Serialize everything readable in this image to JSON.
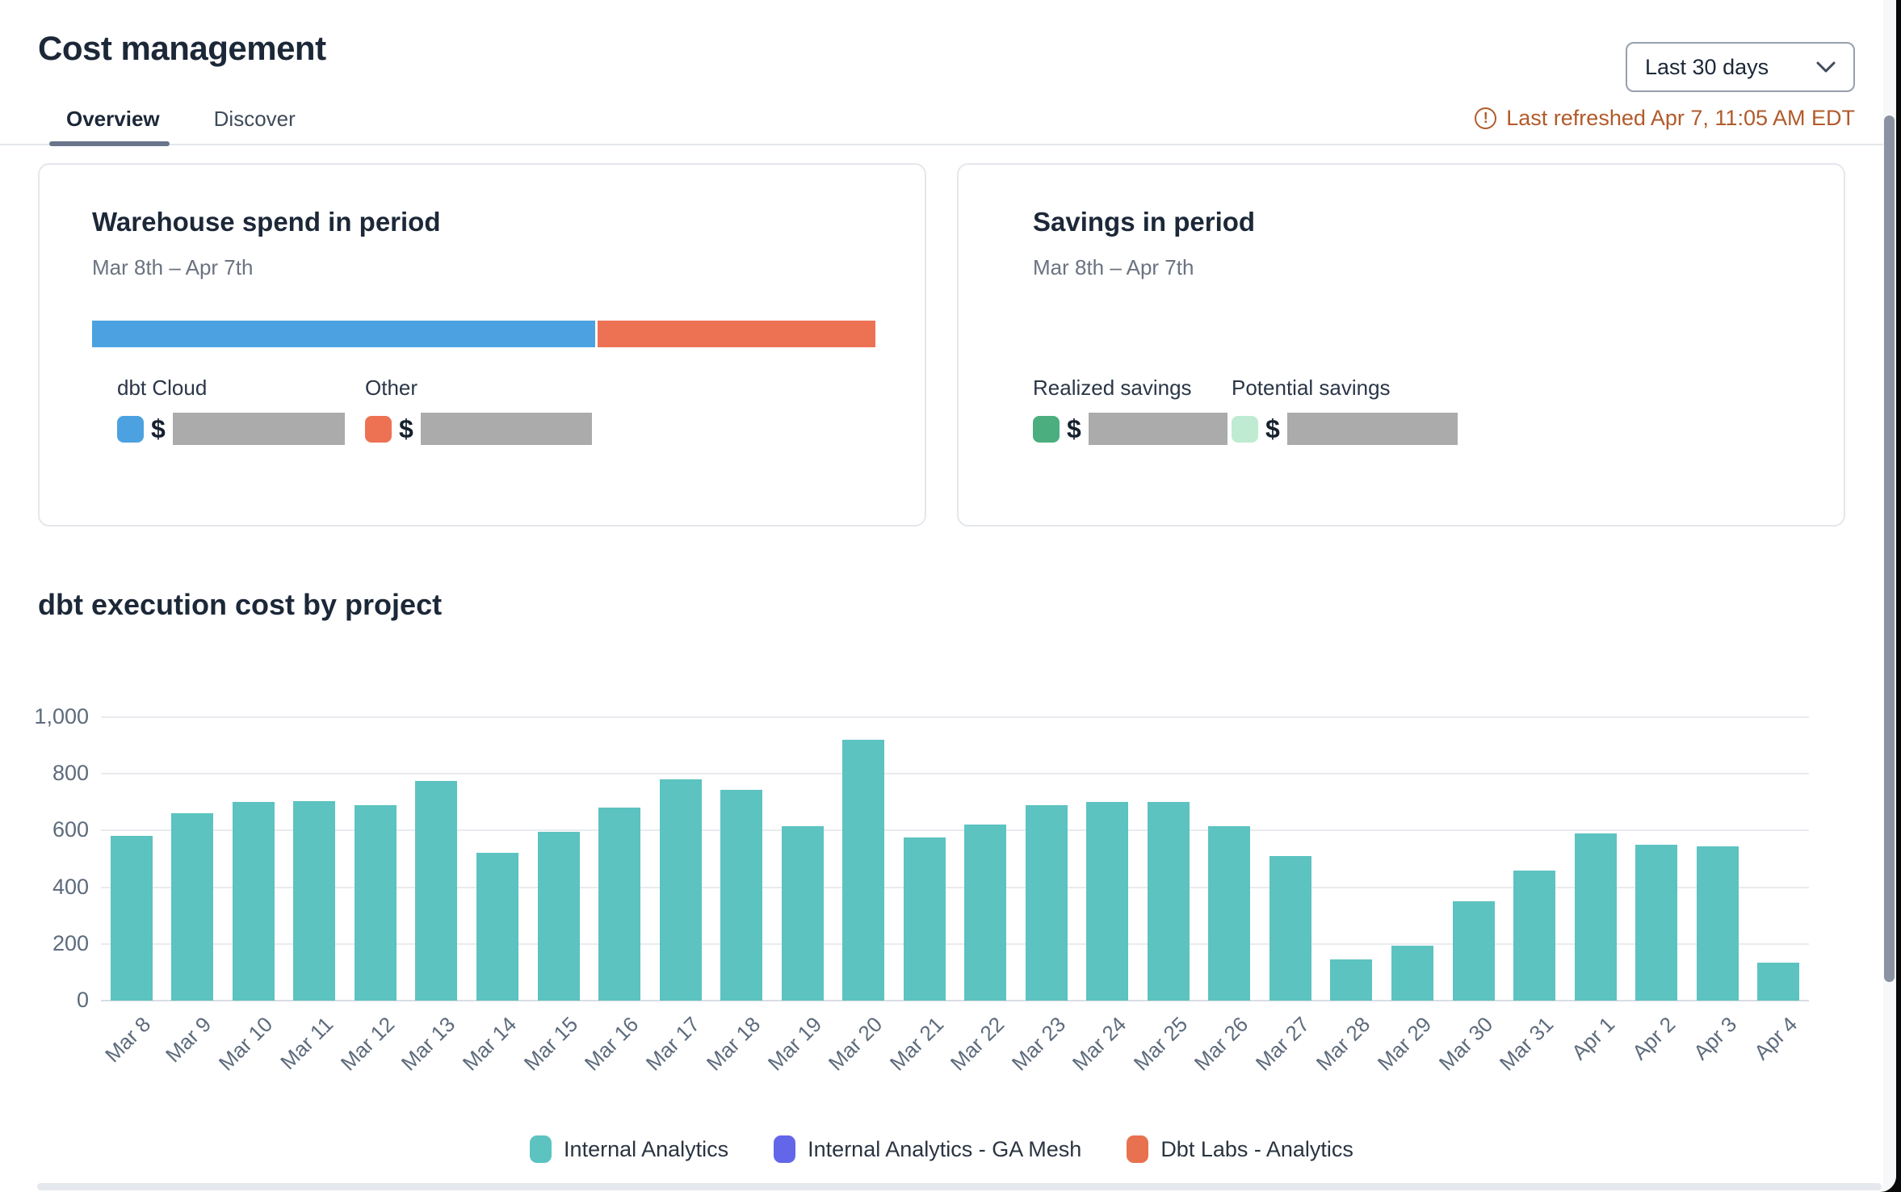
{
  "header": {
    "title": "Cost management",
    "tabs": [
      {
        "label": "Overview",
        "active": true
      },
      {
        "label": "Discover",
        "active": false
      }
    ],
    "period_selector": {
      "value": "Last 30 days"
    },
    "refresh_notice": "Last refreshed Apr 7, 11:05 AM EDT",
    "refresh_color": "#b15a2b"
  },
  "cards": {
    "warehouse_spend": {
      "title": "Warehouse spend in period",
      "date_range": "Mar 8th – Apr 7th",
      "currency_symbol": "$",
      "segments": [
        {
          "label": "dbt Cloud",
          "color": "#4ca2e0",
          "percent": 64.4,
          "value_redacted": true
        },
        {
          "label": "Other",
          "color": "#ed7253",
          "percent": 35.6,
          "value_redacted": true
        }
      ]
    },
    "savings": {
      "title": "Savings in period",
      "date_range": "Mar 8th – Apr 7th",
      "currency_symbol": "$",
      "items": [
        {
          "label": "Realized savings",
          "color": "#4bae7e",
          "value_redacted": true
        },
        {
          "label": "Potential savings",
          "color": "#bfebd3",
          "value_redacted": true
        }
      ]
    }
  },
  "chart_section": {
    "title": "dbt execution cost by project"
  },
  "chart_data": {
    "type": "bar",
    "title": "dbt execution cost by project",
    "xlabel": "",
    "ylabel": "",
    "ylim": [
      0,
      1000
    ],
    "yticks": [
      {
        "value": 0,
        "label": "0"
      },
      {
        "value": 200,
        "label": "200"
      },
      {
        "value": 400,
        "label": "400"
      },
      {
        "value": 600,
        "label": "600"
      },
      {
        "value": 800,
        "label": "800"
      },
      {
        "value": 1000,
        "label": "1,000"
      }
    ],
    "grid": true,
    "legend_position": "bottom",
    "categories": [
      "Mar 8",
      "Mar 9",
      "Mar 10",
      "Mar 11",
      "Mar 12",
      "Mar 13",
      "Mar 14",
      "Mar 15",
      "Mar 16",
      "Mar 17",
      "Mar 18",
      "Mar 19",
      "Mar 20",
      "Mar 21",
      "Mar 22",
      "Mar 23",
      "Mar 24",
      "Mar 25",
      "Mar 26",
      "Mar 27",
      "Mar 28",
      "Mar 29",
      "Mar 30",
      "Mar 31",
      "Apr 1",
      "Apr 2",
      "Apr 3",
      "Apr 4"
    ],
    "series": [
      {
        "name": "Internal Analytics",
        "color": "#5cc3c0",
        "values": [
          580,
          660,
          700,
          705,
          690,
          775,
          520,
          595,
          680,
          780,
          745,
          615,
          920,
          575,
          620,
          690,
          700,
          700,
          615,
          510,
          145,
          195,
          350,
          460,
          590,
          550,
          545,
          135
        ]
      }
    ],
    "legend": [
      {
        "label": "Internal Analytics",
        "color": "#5cc3c0"
      },
      {
        "label": "Internal Analytics - GA Mesh",
        "color": "#6466e9"
      },
      {
        "label": "Dbt Labs - Analytics",
        "color": "#e8714f"
      }
    ]
  }
}
